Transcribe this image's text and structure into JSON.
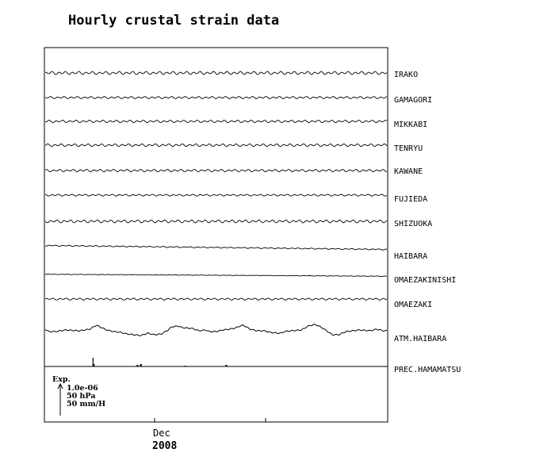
{
  "chart_data": {
    "type": "line",
    "title": "Hourly crustal strain data",
    "x_tick_labels": [
      "Dec"
    ],
    "x_year_label": "2008",
    "grid": false,
    "legend_placement": "bottom-left",
    "scale_legend": {
      "heading": "Exp.",
      "lines": [
        "1.0e-06",
        "50 hPa",
        "50 mm/H"
      ]
    },
    "series": [
      {
        "name": "IRAKO",
        "kind": "tidal",
        "amplitude": 1.4,
        "drift": 0
      },
      {
        "name": "GAMAGORI",
        "kind": "tidal",
        "amplitude": 1.0,
        "drift": 0
      },
      {
        "name": "MIKKABI",
        "kind": "tidal",
        "amplitude": 1.1,
        "drift": 0
      },
      {
        "name": "TENRYU",
        "kind": "tidal",
        "amplitude": 1.2,
        "drift": 0
      },
      {
        "name": "KAWANE",
        "kind": "tidal",
        "amplitude": 1.1,
        "drift": 0
      },
      {
        "name": "FUJIEDA",
        "kind": "tidal",
        "amplitude": 0.8,
        "drift": 0
      },
      {
        "name": "SHIZUOKA",
        "kind": "tidal",
        "amplitude": 1.3,
        "drift": 0
      },
      {
        "name": "HAIBARA",
        "kind": "tidal",
        "amplitude": 0.5,
        "drift": 10
      },
      {
        "name": "OMAEZAKINISHI",
        "kind": "tidal",
        "amplitude": 0.2,
        "drift": 5
      },
      {
        "name": "OMAEZAKI",
        "kind": "tidal",
        "amplitude": 0.9,
        "drift": 0
      },
      {
        "name": "ATM.HAIBARA",
        "kind": "pressure",
        "amplitude": 9,
        "drift": 0
      },
      {
        "name": "PREC.HAMAMATSU",
        "kind": "precip",
        "amplitude": 0,
        "drift": 0
      }
    ],
    "pressure_points": [
      [
        0,
        1
      ],
      [
        0.01,
        -2
      ],
      [
        0.03,
        -2
      ],
      [
        0.06,
        0
      ],
      [
        0.1,
        -1
      ],
      [
        0.13,
        1
      ],
      [
        0.15,
        6
      ],
      [
        0.16,
        4
      ],
      [
        0.18,
        0
      ],
      [
        0.2,
        -2
      ],
      [
        0.22,
        -3
      ],
      [
        0.24,
        -5
      ],
      [
        0.26,
        -6
      ],
      [
        0.28,
        -7
      ],
      [
        0.3,
        -4
      ],
      [
        0.32,
        -6
      ],
      [
        0.34,
        -5
      ],
      [
        0.36,
        0
      ],
      [
        0.37,
        4
      ],
      [
        0.39,
        5
      ],
      [
        0.4,
        3
      ],
      [
        0.43,
        2
      ],
      [
        0.45,
        -1
      ],
      [
        0.47,
        0
      ],
      [
        0.48,
        -2
      ],
      [
        0.5,
        -2
      ],
      [
        0.52,
        0
      ],
      [
        0.54,
        1
      ],
      [
        0.56,
        3
      ],
      [
        0.57,
        5
      ],
      [
        0.58,
        6
      ],
      [
        0.6,
        1
      ],
      [
        0.62,
        -1
      ],
      [
        0.64,
        -1
      ],
      [
        0.66,
        -3
      ],
      [
        0.68,
        -4
      ],
      [
        0.69,
        -4
      ],
      [
        0.7,
        -2
      ],
      [
        0.72,
        -1
      ],
      [
        0.75,
        0
      ],
      [
        0.77,
        5
      ],
      [
        0.79,
        7
      ],
      [
        0.8,
        5
      ],
      [
        0.81,
        3
      ],
      [
        0.84,
        -6
      ],
      [
        0.86,
        -6
      ],
      [
        0.88,
        -2
      ],
      [
        0.9,
        -1
      ],
      [
        0.92,
        0
      ],
      [
        0.95,
        -1
      ],
      [
        0.97,
        1
      ],
      [
        0.99,
        -1
      ],
      [
        1,
        -1
      ]
    ],
    "precip_events": [
      {
        "x": 0.14,
        "value": 11
      },
      {
        "x": 0.142,
        "value": 3
      },
      {
        "x": 0.27,
        "value": 2
      },
      {
        "x": 0.28,
        "value": 3
      },
      {
        "x": 0.41,
        "value": 1
      },
      {
        "x": 0.53,
        "value": 2
      }
    ]
  }
}
